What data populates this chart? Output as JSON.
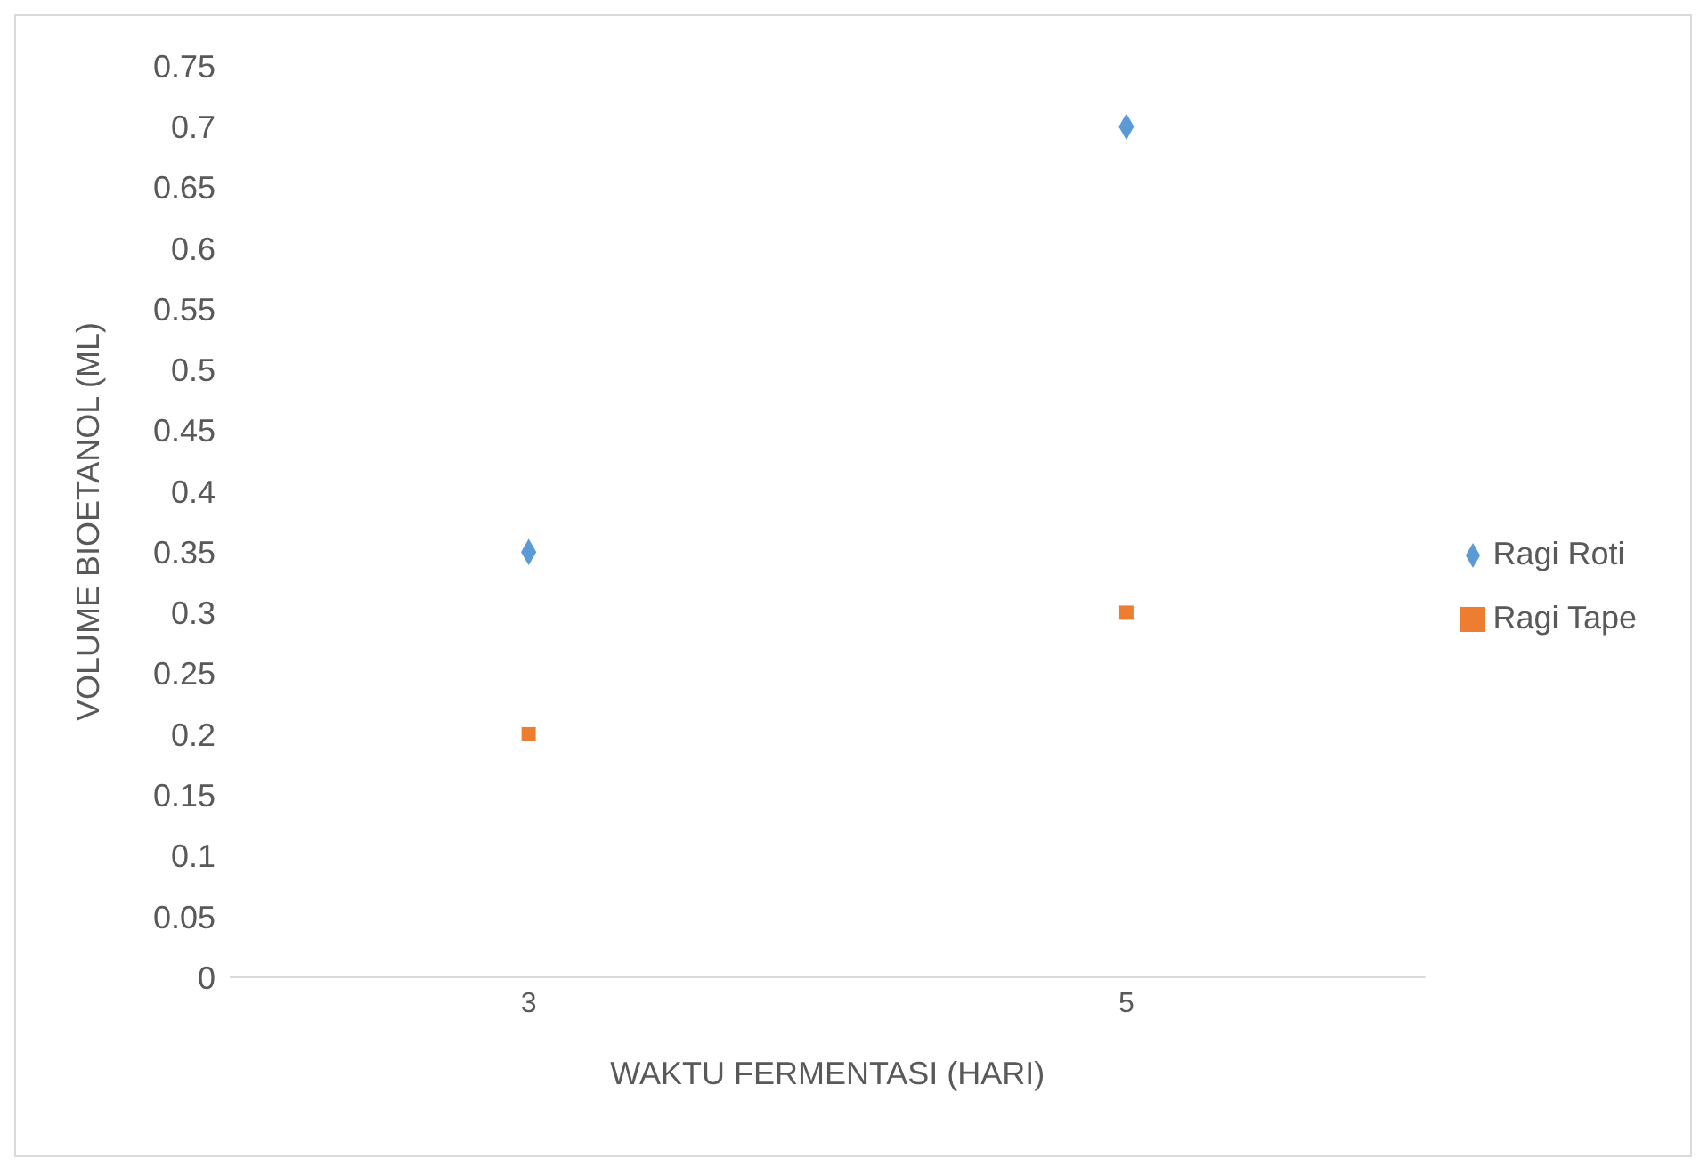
{
  "chart_data": {
    "type": "scatter",
    "xlabel": "WAKTU FERMENTASI (HARI)",
    "ylabel": "VOLUME BIOETANOL (ML)",
    "categories": [
      "3",
      "5"
    ],
    "series": [
      {
        "name": "Ragi Roti",
        "color": "#5b9bd5",
        "marker": "diamond",
        "values": [
          0.35,
          0.7
        ]
      },
      {
        "name": "Ragi Tape",
        "color": "#ed7d31",
        "marker": "square",
        "values": [
          0.2,
          0.3
        ]
      }
    ],
    "ylim": [
      0,
      0.75
    ],
    "yticks": [
      0,
      0.05,
      0.1,
      0.15,
      0.2,
      0.25,
      0.3,
      0.35,
      0.4,
      0.45,
      0.5,
      0.55,
      0.6,
      0.65,
      0.7,
      0.75
    ],
    "grid": false,
    "legend": "right"
  }
}
